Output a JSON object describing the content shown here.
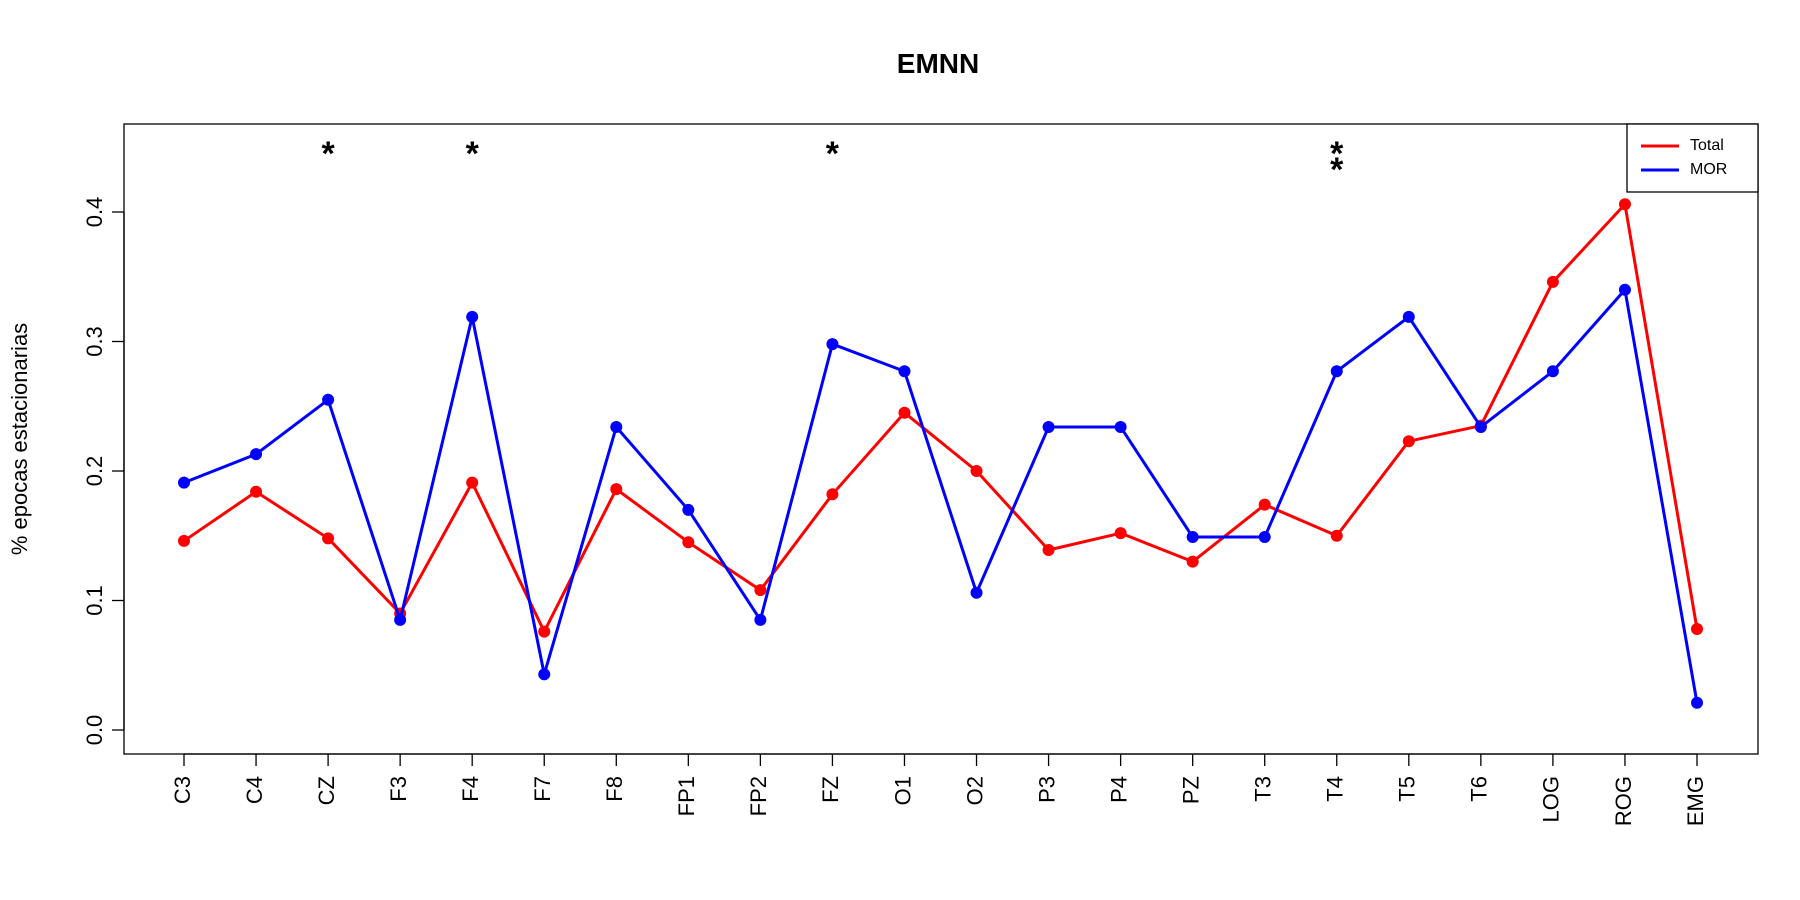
{
  "chart_data": {
    "type": "line",
    "title": "EMNN",
    "xlabel": "",
    "ylabel": "% epocas estacionarias",
    "ylim": [
      -0.017,
      0.47
    ],
    "yticks": [
      0.0,
      0.1,
      0.2,
      0.3,
      0.4
    ],
    "ytick_labels": [
      "0.0",
      "0.1",
      "0.2",
      "0.3",
      "0.4"
    ],
    "grid": false,
    "legend_position": "top-right",
    "categories": [
      "C3",
      "C4",
      "CZ",
      "F3",
      "F4",
      "F7",
      "F8",
      "FP1",
      "FP2",
      "FZ",
      "O1",
      "O2",
      "P3",
      "P4",
      "PZ",
      "T3",
      "T4",
      "T5",
      "T6",
      "LOG",
      "ROG",
      "EMG"
    ],
    "series": [
      {
        "name": "Total",
        "color": "#ff0000",
        "values": [
          0.146,
          0.184,
          0.148,
          0.09,
          0.191,
          0.076,
          0.186,
          0.145,
          0.108,
          0.182,
          0.245,
          0.2,
          0.139,
          0.152,
          0.13,
          0.174,
          0.15,
          0.223,
          0.235,
          0.346,
          0.406,
          0.078
        ]
      },
      {
        "name": "MOR",
        "color": "#0000ff",
        "values": [
          0.191,
          0.213,
          0.255,
          0.085,
          0.319,
          0.043,
          0.234,
          0.17,
          0.085,
          0.298,
          0.277,
          0.106,
          0.234,
          0.234,
          0.149,
          0.149,
          0.277,
          0.319,
          0.234,
          0.277,
          0.34,
          0.021
        ]
      }
    ],
    "annotations": [
      {
        "category": "CZ",
        "text": "*"
      },
      {
        "category": "F4",
        "text": "*"
      },
      {
        "category": "FZ",
        "text": "*"
      },
      {
        "category": "T4",
        "text": "**"
      }
    ]
  }
}
